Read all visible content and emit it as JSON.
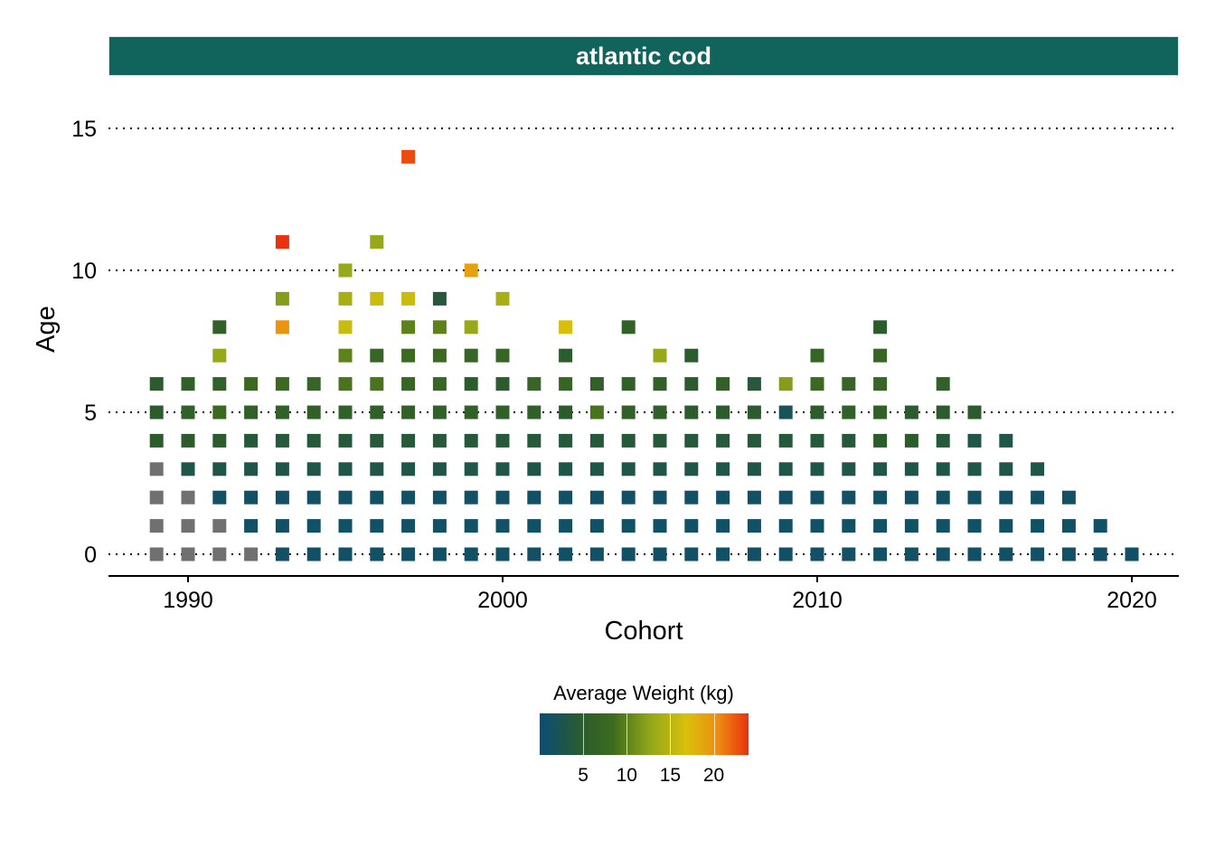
{
  "panel": {
    "strip_label": "atlantic cod",
    "strip_color": "#10645c"
  },
  "chart_data": {
    "type": "scatter",
    "marker": "square",
    "title": "",
    "xlabel": "Cohort",
    "ylabel": "Age",
    "xlim": [
      1987.5,
      2021.5
    ],
    "ylim": [
      -0.7,
      15.5
    ],
    "x_ticks": [
      1990,
      2000,
      2010,
      2020
    ],
    "y_ticks": [
      0,
      5,
      10,
      15
    ],
    "grid": "horizontal dotted",
    "legend": {
      "title": "Average Weight (kg)",
      "placement": "bottom",
      "type": "colorbar",
      "ticks": [
        5,
        10,
        15,
        20
      ],
      "range": [
        0,
        24
      ],
      "colors": [
        "#0b4d74",
        "#2b5b2f",
        "#3d6b1e",
        "#8ea51a",
        "#d8c10c",
        "#ee8e10",
        "#e8320e"
      ],
      "missing_color": "#707070"
    },
    "points": [
      {
        "cohort": 1989,
        "age": 0,
        "weight": null
      },
      {
        "cohort": 1989,
        "age": 1,
        "weight": null
      },
      {
        "cohort": 1989,
        "age": 2,
        "weight": null
      },
      {
        "cohort": 1989,
        "age": 3,
        "weight": null
      },
      {
        "cohort": 1989,
        "age": 4,
        "weight": 5
      },
      {
        "cohort": 1989,
        "age": 5,
        "weight": 5
      },
      {
        "cohort": 1989,
        "age": 6,
        "weight": 5
      },
      {
        "cohort": 1990,
        "age": 0,
        "weight": null
      },
      {
        "cohort": 1990,
        "age": 1,
        "weight": null
      },
      {
        "cohort": 1990,
        "age": 2,
        "weight": null
      },
      {
        "cohort": 1990,
        "age": 3,
        "weight": 3
      },
      {
        "cohort": 1990,
        "age": 4,
        "weight": 5
      },
      {
        "cohort": 1990,
        "age": 5,
        "weight": 6
      },
      {
        "cohort": 1990,
        "age": 6,
        "weight": 6
      },
      {
        "cohort": 1991,
        "age": 0,
        "weight": null
      },
      {
        "cohort": 1991,
        "age": 1,
        "weight": null
      },
      {
        "cohort": 1991,
        "age": 2,
        "weight": 1
      },
      {
        "cohort": 1991,
        "age": 3,
        "weight": 3
      },
      {
        "cohort": 1991,
        "age": 4,
        "weight": 5
      },
      {
        "cohort": 1991,
        "age": 5,
        "weight": 8
      },
      {
        "cohort": 1991,
        "age": 6,
        "weight": 6
      },
      {
        "cohort": 1991,
        "age": 7,
        "weight": 13
      },
      {
        "cohort": 1991,
        "age": 8,
        "weight": 6
      },
      {
        "cohort": 1992,
        "age": 0,
        "weight": null
      },
      {
        "cohort": 1992,
        "age": 1,
        "weight": 1
      },
      {
        "cohort": 1992,
        "age": 2,
        "weight": 1
      },
      {
        "cohort": 1992,
        "age": 3,
        "weight": 3
      },
      {
        "cohort": 1992,
        "age": 4,
        "weight": 4
      },
      {
        "cohort": 1992,
        "age": 5,
        "weight": 6
      },
      {
        "cohort": 1992,
        "age": 6,
        "weight": 8
      },
      {
        "cohort": 1993,
        "age": 0,
        "weight": 1
      },
      {
        "cohort": 1993,
        "age": 1,
        "weight": 1
      },
      {
        "cohort": 1993,
        "age": 2,
        "weight": 1
      },
      {
        "cohort": 1993,
        "age": 3,
        "weight": 3
      },
      {
        "cohort": 1993,
        "age": 4,
        "weight": 4
      },
      {
        "cohort": 1993,
        "age": 5,
        "weight": 6
      },
      {
        "cohort": 1993,
        "age": 6,
        "weight": 8
      },
      {
        "cohort": 1993,
        "age": 8,
        "weight": 20
      },
      {
        "cohort": 1993,
        "age": 9,
        "weight": 12
      },
      {
        "cohort": 1993,
        "age": 11,
        "weight": 24
      },
      {
        "cohort": 1994,
        "age": 0,
        "weight": 1
      },
      {
        "cohort": 1994,
        "age": 1,
        "weight": 1
      },
      {
        "cohort": 1994,
        "age": 2,
        "weight": 1
      },
      {
        "cohort": 1994,
        "age": 3,
        "weight": 3
      },
      {
        "cohort": 1994,
        "age": 4,
        "weight": 4
      },
      {
        "cohort": 1994,
        "age": 5,
        "weight": 6
      },
      {
        "cohort": 1994,
        "age": 6,
        "weight": 7
      },
      {
        "cohort": 1995,
        "age": 0,
        "weight": 1
      },
      {
        "cohort": 1995,
        "age": 1,
        "weight": 1
      },
      {
        "cohort": 1995,
        "age": 2,
        "weight": 1
      },
      {
        "cohort": 1995,
        "age": 3,
        "weight": 3
      },
      {
        "cohort": 1995,
        "age": 4,
        "weight": 4
      },
      {
        "cohort": 1995,
        "age": 5,
        "weight": 6
      },
      {
        "cohort": 1995,
        "age": 6,
        "weight": 9
      },
      {
        "cohort": 1995,
        "age": 7,
        "weight": 10
      },
      {
        "cohort": 1995,
        "age": 8,
        "weight": 16
      },
      {
        "cohort": 1995,
        "age": 9,
        "weight": 14
      },
      {
        "cohort": 1995,
        "age": 10,
        "weight": 13
      },
      {
        "cohort": 1996,
        "age": 0,
        "weight": 1
      },
      {
        "cohort": 1996,
        "age": 1,
        "weight": 1
      },
      {
        "cohort": 1996,
        "age": 2,
        "weight": 1
      },
      {
        "cohort": 1996,
        "age": 3,
        "weight": 3
      },
      {
        "cohort": 1996,
        "age": 4,
        "weight": 4
      },
      {
        "cohort": 1996,
        "age": 5,
        "weight": 6
      },
      {
        "cohort": 1996,
        "age": 6,
        "weight": 9
      },
      {
        "cohort": 1996,
        "age": 7,
        "weight": 7
      },
      {
        "cohort": 1996,
        "age": 9,
        "weight": 16
      },
      {
        "cohort": 1996,
        "age": 11,
        "weight": 13
      },
      {
        "cohort": 1997,
        "age": 0,
        "weight": 1
      },
      {
        "cohort": 1997,
        "age": 1,
        "weight": 1
      },
      {
        "cohort": 1997,
        "age": 2,
        "weight": 1
      },
      {
        "cohort": 1997,
        "age": 3,
        "weight": 3
      },
      {
        "cohort": 1997,
        "age": 4,
        "weight": 4
      },
      {
        "cohort": 1997,
        "age": 5,
        "weight": 6
      },
      {
        "cohort": 1997,
        "age": 6,
        "weight": 7
      },
      {
        "cohort": 1997,
        "age": 7,
        "weight": 8
      },
      {
        "cohort": 1997,
        "age": 8,
        "weight": 10
      },
      {
        "cohort": 1997,
        "age": 9,
        "weight": 16
      },
      {
        "cohort": 1997,
        "age": 14,
        "weight": 23
      },
      {
        "cohort": 1998,
        "age": 0,
        "weight": 1
      },
      {
        "cohort": 1998,
        "age": 1,
        "weight": 1
      },
      {
        "cohort": 1998,
        "age": 2,
        "weight": 1
      },
      {
        "cohort": 1998,
        "age": 3,
        "weight": 3
      },
      {
        "cohort": 1998,
        "age": 4,
        "weight": 4
      },
      {
        "cohort": 1998,
        "age": 5,
        "weight": 6
      },
      {
        "cohort": 1998,
        "age": 6,
        "weight": 7
      },
      {
        "cohort": 1998,
        "age": 7,
        "weight": 8
      },
      {
        "cohort": 1998,
        "age": 8,
        "weight": 10
      },
      {
        "cohort": 1998,
        "age": 9,
        "weight": 4
      },
      {
        "cohort": 1999,
        "age": 0,
        "weight": 1
      },
      {
        "cohort": 1999,
        "age": 1,
        "weight": 1
      },
      {
        "cohort": 1999,
        "age": 2,
        "weight": 1
      },
      {
        "cohort": 1999,
        "age": 3,
        "weight": 3
      },
      {
        "cohort": 1999,
        "age": 4,
        "weight": 4
      },
      {
        "cohort": 1999,
        "age": 5,
        "weight": 6
      },
      {
        "cohort": 1999,
        "age": 6,
        "weight": 5
      },
      {
        "cohort": 1999,
        "age": 7,
        "weight": 7
      },
      {
        "cohort": 1999,
        "age": 8,
        "weight": 13
      },
      {
        "cohort": 1999,
        "age": 10,
        "weight": 19
      },
      {
        "cohort": 2000,
        "age": 0,
        "weight": 1
      },
      {
        "cohort": 2000,
        "age": 1,
        "weight": 1
      },
      {
        "cohort": 2000,
        "age": 2,
        "weight": 1
      },
      {
        "cohort": 2000,
        "age": 3,
        "weight": 3
      },
      {
        "cohort": 2000,
        "age": 4,
        "weight": 4
      },
      {
        "cohort": 2000,
        "age": 5,
        "weight": 6
      },
      {
        "cohort": 2000,
        "age": 6,
        "weight": 5
      },
      {
        "cohort": 2000,
        "age": 7,
        "weight": 7
      },
      {
        "cohort": 2000,
        "age": 9,
        "weight": 14
      },
      {
        "cohort": 2001,
        "age": 0,
        "weight": 1
      },
      {
        "cohort": 2001,
        "age": 1,
        "weight": 1
      },
      {
        "cohort": 2001,
        "age": 2,
        "weight": 1
      },
      {
        "cohort": 2001,
        "age": 3,
        "weight": 3
      },
      {
        "cohort": 2001,
        "age": 4,
        "weight": 4
      },
      {
        "cohort": 2001,
        "age": 5,
        "weight": 6
      },
      {
        "cohort": 2001,
        "age": 6,
        "weight": 7
      },
      {
        "cohort": 2002,
        "age": 0,
        "weight": 1
      },
      {
        "cohort": 2002,
        "age": 1,
        "weight": 1
      },
      {
        "cohort": 2002,
        "age": 2,
        "weight": 1
      },
      {
        "cohort": 2002,
        "age": 3,
        "weight": 3
      },
      {
        "cohort": 2002,
        "age": 4,
        "weight": 4
      },
      {
        "cohort": 2002,
        "age": 5,
        "weight": 5
      },
      {
        "cohort": 2002,
        "age": 6,
        "weight": 7
      },
      {
        "cohort": 2002,
        "age": 7,
        "weight": 5
      },
      {
        "cohort": 2002,
        "age": 8,
        "weight": 17
      },
      {
        "cohort": 2003,
        "age": 0,
        "weight": 1
      },
      {
        "cohort": 2003,
        "age": 1,
        "weight": 1
      },
      {
        "cohort": 2003,
        "age": 2,
        "weight": 1
      },
      {
        "cohort": 2003,
        "age": 3,
        "weight": 3
      },
      {
        "cohort": 2003,
        "age": 4,
        "weight": 4
      },
      {
        "cohort": 2003,
        "age": 5,
        "weight": 9
      },
      {
        "cohort": 2003,
        "age": 6,
        "weight": 6
      },
      {
        "cohort": 2004,
        "age": 0,
        "weight": 1
      },
      {
        "cohort": 2004,
        "age": 1,
        "weight": 1
      },
      {
        "cohort": 2004,
        "age": 2,
        "weight": 1
      },
      {
        "cohort": 2004,
        "age": 3,
        "weight": 3
      },
      {
        "cohort": 2004,
        "age": 4,
        "weight": 4
      },
      {
        "cohort": 2004,
        "age": 5,
        "weight": 6
      },
      {
        "cohort": 2004,
        "age": 6,
        "weight": 6
      },
      {
        "cohort": 2004,
        "age": 8,
        "weight": 6
      },
      {
        "cohort": 2005,
        "age": 0,
        "weight": 1
      },
      {
        "cohort": 2005,
        "age": 1,
        "weight": 1
      },
      {
        "cohort": 2005,
        "age": 2,
        "weight": 1
      },
      {
        "cohort": 2005,
        "age": 3,
        "weight": 3
      },
      {
        "cohort": 2005,
        "age": 4,
        "weight": 4
      },
      {
        "cohort": 2005,
        "age": 5,
        "weight": 6
      },
      {
        "cohort": 2005,
        "age": 6,
        "weight": 6
      },
      {
        "cohort": 2005,
        "age": 7,
        "weight": 13
      },
      {
        "cohort": 2006,
        "age": 0,
        "weight": 1
      },
      {
        "cohort": 2006,
        "age": 1,
        "weight": 1
      },
      {
        "cohort": 2006,
        "age": 2,
        "weight": 1
      },
      {
        "cohort": 2006,
        "age": 3,
        "weight": 3
      },
      {
        "cohort": 2006,
        "age": 4,
        "weight": 4
      },
      {
        "cohort": 2006,
        "age": 5,
        "weight": 5
      },
      {
        "cohort": 2006,
        "age": 6,
        "weight": 5
      },
      {
        "cohort": 2006,
        "age": 7,
        "weight": 5
      },
      {
        "cohort": 2007,
        "age": 0,
        "weight": 1
      },
      {
        "cohort": 2007,
        "age": 1,
        "weight": 1
      },
      {
        "cohort": 2007,
        "age": 2,
        "weight": 1
      },
      {
        "cohort": 2007,
        "age": 3,
        "weight": 3
      },
      {
        "cohort": 2007,
        "age": 4,
        "weight": 4
      },
      {
        "cohort": 2007,
        "age": 5,
        "weight": 5
      },
      {
        "cohort": 2007,
        "age": 6,
        "weight": 6
      },
      {
        "cohort": 2008,
        "age": 0,
        "weight": 1
      },
      {
        "cohort": 2008,
        "age": 1,
        "weight": 1
      },
      {
        "cohort": 2008,
        "age": 2,
        "weight": 1
      },
      {
        "cohort": 2008,
        "age": 3,
        "weight": 3
      },
      {
        "cohort": 2008,
        "age": 4,
        "weight": 4
      },
      {
        "cohort": 2008,
        "age": 5,
        "weight": 5
      },
      {
        "cohort": 2008,
        "age": 6,
        "weight": 4
      },
      {
        "cohort": 2009,
        "age": 0,
        "weight": 1
      },
      {
        "cohort": 2009,
        "age": 1,
        "weight": 1
      },
      {
        "cohort": 2009,
        "age": 2,
        "weight": 1
      },
      {
        "cohort": 2009,
        "age": 3,
        "weight": 3
      },
      {
        "cohort": 2009,
        "age": 4,
        "weight": 4
      },
      {
        "cohort": 2009,
        "age": 5,
        "weight": 2
      },
      {
        "cohort": 2009,
        "age": 6,
        "weight": 12
      },
      {
        "cohort": 2010,
        "age": 0,
        "weight": 1
      },
      {
        "cohort": 2010,
        "age": 1,
        "weight": 1
      },
      {
        "cohort": 2010,
        "age": 2,
        "weight": 1
      },
      {
        "cohort": 2010,
        "age": 3,
        "weight": 3
      },
      {
        "cohort": 2010,
        "age": 4,
        "weight": 4
      },
      {
        "cohort": 2010,
        "age": 5,
        "weight": 5
      },
      {
        "cohort": 2010,
        "age": 6,
        "weight": 8
      },
      {
        "cohort": 2010,
        "age": 7,
        "weight": 7
      },
      {
        "cohort": 2011,
        "age": 0,
        "weight": 1
      },
      {
        "cohort": 2011,
        "age": 1,
        "weight": 1
      },
      {
        "cohort": 2011,
        "age": 2,
        "weight": 1
      },
      {
        "cohort": 2011,
        "age": 3,
        "weight": 3
      },
      {
        "cohort": 2011,
        "age": 4,
        "weight": 4
      },
      {
        "cohort": 2011,
        "age": 5,
        "weight": 6
      },
      {
        "cohort": 2011,
        "age": 6,
        "weight": 7
      },
      {
        "cohort": 2012,
        "age": 0,
        "weight": 1
      },
      {
        "cohort": 2012,
        "age": 1,
        "weight": 1
      },
      {
        "cohort": 2012,
        "age": 2,
        "weight": 1
      },
      {
        "cohort": 2012,
        "age": 3,
        "weight": 3
      },
      {
        "cohort": 2012,
        "age": 4,
        "weight": 5
      },
      {
        "cohort": 2012,
        "age": 5,
        "weight": 6
      },
      {
        "cohort": 2012,
        "age": 6,
        "weight": 7
      },
      {
        "cohort": 2012,
        "age": 7,
        "weight": 7
      },
      {
        "cohort": 2012,
        "age": 8,
        "weight": 5
      },
      {
        "cohort": 2013,
        "age": 0,
        "weight": 1
      },
      {
        "cohort": 2013,
        "age": 1,
        "weight": 1
      },
      {
        "cohort": 2013,
        "age": 2,
        "weight": 1
      },
      {
        "cohort": 2013,
        "age": 3,
        "weight": 3
      },
      {
        "cohort": 2013,
        "age": 4,
        "weight": 5
      },
      {
        "cohort": 2013,
        "age": 5,
        "weight": 5
      },
      {
        "cohort": 2014,
        "age": 0,
        "weight": 1
      },
      {
        "cohort": 2014,
        "age": 1,
        "weight": 1
      },
      {
        "cohort": 2014,
        "age": 2,
        "weight": 1
      },
      {
        "cohort": 2014,
        "age": 3,
        "weight": 3
      },
      {
        "cohort": 2014,
        "age": 4,
        "weight": 4
      },
      {
        "cohort": 2014,
        "age": 5,
        "weight": 5
      },
      {
        "cohort": 2014,
        "age": 6,
        "weight": 6
      },
      {
        "cohort": 2015,
        "age": 0,
        "weight": 1
      },
      {
        "cohort": 2015,
        "age": 1,
        "weight": 1
      },
      {
        "cohort": 2015,
        "age": 2,
        "weight": 1
      },
      {
        "cohort": 2015,
        "age": 3,
        "weight": 3
      },
      {
        "cohort": 2015,
        "age": 4,
        "weight": 3
      },
      {
        "cohort": 2015,
        "age": 5,
        "weight": 5
      },
      {
        "cohort": 2016,
        "age": 0,
        "weight": 1
      },
      {
        "cohort": 2016,
        "age": 1,
        "weight": 1
      },
      {
        "cohort": 2016,
        "age": 2,
        "weight": 1
      },
      {
        "cohort": 2016,
        "age": 3,
        "weight": 3
      },
      {
        "cohort": 2016,
        "age": 4,
        "weight": 3
      },
      {
        "cohort": 2017,
        "age": 0,
        "weight": 1
      },
      {
        "cohort": 2017,
        "age": 1,
        "weight": 1
      },
      {
        "cohort": 2017,
        "age": 2,
        "weight": 1
      },
      {
        "cohort": 2017,
        "age": 3,
        "weight": 3
      },
      {
        "cohort": 2018,
        "age": 0,
        "weight": 1
      },
      {
        "cohort": 2018,
        "age": 1,
        "weight": 1
      },
      {
        "cohort": 2018,
        "age": 2,
        "weight": 1
      },
      {
        "cohort": 2019,
        "age": 0,
        "weight": 1
      },
      {
        "cohort": 2019,
        "age": 1,
        "weight": 1
      },
      {
        "cohort": 2020,
        "age": 0,
        "weight": 1
      }
    ]
  }
}
